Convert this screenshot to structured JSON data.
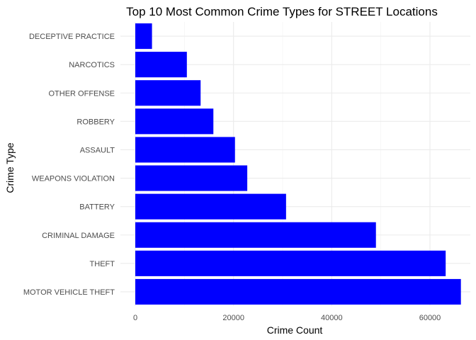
{
  "chart_data": {
    "type": "bar",
    "orientation": "horizontal",
    "title": "Top 10 Most Common Crime Types for STREET Locations",
    "xlabel": "Crime Count",
    "ylabel": "Crime Type",
    "categories": [
      "MOTOR VEHICLE THEFT",
      "THEFT",
      "CRIMINAL DAMAGE",
      "BATTERY",
      "WEAPONS VIOLATION",
      "ASSAULT",
      "ROBBERY",
      "OTHER OFFENSE",
      "NARCOTICS",
      "DECEPTIVE PRACTICE"
    ],
    "values": [
      66300,
      63200,
      49000,
      30700,
      22800,
      20300,
      15900,
      13300,
      10500,
      3400
    ],
    "xlim": [
      0,
      66500
    ],
    "xticks": [
      0,
      20000,
      40000,
      60000
    ],
    "xtick_labels": [
      "0",
      "20000",
      "40000",
      "60000"
    ],
    "bar_color": "#0000ff",
    "grid": true,
    "legend": "none"
  }
}
